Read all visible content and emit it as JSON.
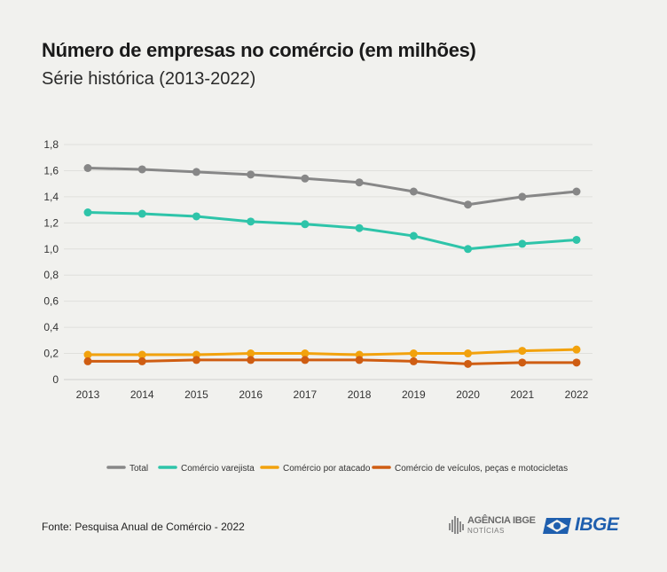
{
  "title": "Número de empresas no comércio (em milhões)",
  "subtitle": "Série histórica (2013-2022)",
  "source": "Fonte: Pesquisa Anual de Comércio - 2022",
  "logos": {
    "agencia_text": "AGÊNCIA IBGE",
    "agencia_sub": "NOTÍCIAS",
    "ibge_text": "IBGE",
    "ibge_color": "#1f5fae"
  },
  "chart_data": {
    "type": "line",
    "x": [
      "2013",
      "2014",
      "2015",
      "2016",
      "2017",
      "2018",
      "2019",
      "2020",
      "2021",
      "2022"
    ],
    "ylim": [
      0,
      1.8
    ],
    "yticks": [
      "0",
      "0,2",
      "0,4",
      "0,6",
      "0,8",
      "1,0",
      "1,2",
      "1,4",
      "1,6",
      "1,8"
    ],
    "grid": true,
    "legend_position": "bottom",
    "series": [
      {
        "name": "Total",
        "color": "#878787",
        "values": [
          1.62,
          1.61,
          1.59,
          1.57,
          1.54,
          1.51,
          1.44,
          1.34,
          1.4,
          1.44
        ]
      },
      {
        "name": "Comércio varejista",
        "color": "#2ec4a9",
        "values": [
          1.28,
          1.27,
          1.25,
          1.21,
          1.19,
          1.16,
          1.1,
          1.0,
          1.04,
          1.07
        ]
      },
      {
        "name": "Comércio por atacado",
        "color": "#f2a20d",
        "values": [
          0.19,
          0.19,
          0.19,
          0.2,
          0.2,
          0.19,
          0.2,
          0.2,
          0.22,
          0.23
        ]
      },
      {
        "name": "Comércio de veículos, peças e motocicletas",
        "color": "#cf5d12",
        "values": [
          0.14,
          0.14,
          0.15,
          0.15,
          0.15,
          0.15,
          0.14,
          0.12,
          0.13,
          0.13
        ]
      }
    ]
  }
}
